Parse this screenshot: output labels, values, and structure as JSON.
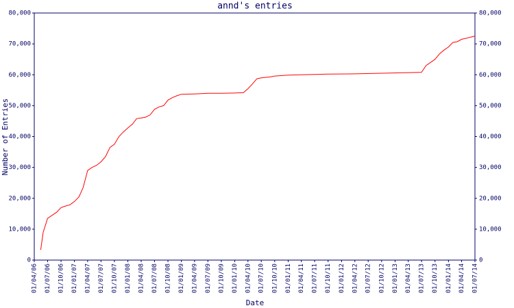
{
  "chart_data": {
    "type": "line",
    "title": "annd's entries",
    "xlabel": "Date",
    "ylabel": "Number of Entries",
    "x": [
      "2006-05-15",
      "2006-06-01",
      "2006-07-01",
      "2006-08-01",
      "2006-09-01",
      "2006-10-01",
      "2006-11-01",
      "2006-12-01",
      "2007-01-01",
      "2007-02-01",
      "2007-03-01",
      "2007-04-01",
      "2007-05-01",
      "2007-06-01",
      "2007-07-01",
      "2007-08-01",
      "2007-09-01",
      "2007-10-01",
      "2007-11-01",
      "2007-12-01",
      "2008-01-01",
      "2008-02-01",
      "2008-03-01",
      "2008-04-01",
      "2008-05-01",
      "2008-06-01",
      "2008-07-01",
      "2008-08-01",
      "2008-09-01",
      "2008-10-01",
      "2008-11-01",
      "2008-12-01",
      "2009-01-01",
      "2009-04-01",
      "2009-07-01",
      "2009-10-01",
      "2010-01-01",
      "2010-03-01",
      "2010-04-01",
      "2010-05-01",
      "2010-06-01",
      "2010-07-01",
      "2010-09-01",
      "2010-10-01",
      "2011-01-01",
      "2011-04-01",
      "2011-10-01",
      "2012-04-01",
      "2012-10-01",
      "2013-04-01",
      "2013-07-01",
      "2013-08-01",
      "2013-09-01",
      "2013-10-01",
      "2013-11-01",
      "2013-12-01",
      "2014-01-01",
      "2014-02-01",
      "2014-03-01",
      "2014-04-01",
      "2014-05-01",
      "2014-06-01",
      "2014-07-01"
    ],
    "series": [
      {
        "name": "entries",
        "color": "#ff0000",
        "values": [
          3300,
          9000,
          13500,
          14500,
          15500,
          17000,
          17500,
          17900,
          19000,
          20500,
          23500,
          29000,
          30000,
          30700,
          31800,
          33500,
          36500,
          37500,
          40000,
          41500,
          42800,
          44000,
          45800,
          46000,
          46300,
          47000,
          48800,
          49600,
          50000,
          51800,
          52600,
          53200,
          53700,
          53800,
          54000,
          54000,
          54100,
          54200,
          55500,
          57000,
          58700,
          59000,
          59300,
          59600,
          59900,
          60000,
          60200,
          60300,
          60500,
          60700,
          60800,
          63000,
          64000,
          65000,
          66800,
          68000,
          69000,
          70500,
          70700,
          71500,
          71800,
          72200,
          72500
        ]
      }
    ],
    "xlim": [
      "2006-04-01",
      "2014-07-01"
    ],
    "xticks": [
      {
        "value": "2006-04-01",
        "label": "01/04/06"
      },
      {
        "value": "2006-07-01",
        "label": "01/07/06"
      },
      {
        "value": "2006-10-01",
        "label": "01/10/06"
      },
      {
        "value": "2007-01-01",
        "label": "01/01/07"
      },
      {
        "value": "2007-04-01",
        "label": "01/04/07"
      },
      {
        "value": "2007-07-01",
        "label": "01/07/07"
      },
      {
        "value": "2007-10-01",
        "label": "01/10/07"
      },
      {
        "value": "2008-01-01",
        "label": "01/01/08"
      },
      {
        "value": "2008-04-01",
        "label": "01/04/08"
      },
      {
        "value": "2008-07-01",
        "label": "01/07/08"
      },
      {
        "value": "2008-10-01",
        "label": "01/10/08"
      },
      {
        "value": "2009-01-01",
        "label": "01/01/09"
      },
      {
        "value": "2009-04-01",
        "label": "01/04/09"
      },
      {
        "value": "2009-07-01",
        "label": "01/07/09"
      },
      {
        "value": "2009-10-01",
        "label": "01/10/09"
      },
      {
        "value": "2010-01-01",
        "label": "01/01/10"
      },
      {
        "value": "2010-04-01",
        "label": "01/04/10"
      },
      {
        "value": "2010-07-01",
        "label": "01/07/10"
      },
      {
        "value": "2010-10-01",
        "label": "01/10/10"
      },
      {
        "value": "2011-01-01",
        "label": "01/01/11"
      },
      {
        "value": "2011-04-01",
        "label": "01/04/11"
      },
      {
        "value": "2011-07-01",
        "label": "01/07/11"
      },
      {
        "value": "2011-10-01",
        "label": "01/10/11"
      },
      {
        "value": "2012-01-01",
        "label": "01/01/12"
      },
      {
        "value": "2012-04-01",
        "label": "01/04/12"
      },
      {
        "value": "2012-07-01",
        "label": "01/07/12"
      },
      {
        "value": "2012-10-01",
        "label": "01/10/12"
      },
      {
        "value": "2013-01-01",
        "label": "01/01/13"
      },
      {
        "value": "2013-04-01",
        "label": "01/04/13"
      },
      {
        "value": "2013-07-01",
        "label": "01/07/13"
      },
      {
        "value": "2013-10-01",
        "label": "01/10/13"
      },
      {
        "value": "2014-01-01",
        "label": "01/01/14"
      },
      {
        "value": "2014-04-01",
        "label": "01/04/14"
      },
      {
        "value": "2014-07-01",
        "label": "01/07/14"
      }
    ],
    "ylim": [
      0,
      80000
    ],
    "yticks": [
      0,
      {
        "value": 10000,
        "label": "10,000"
      },
      {
        "value": 20000,
        "label": "20,000"
      },
      {
        "value": 30000,
        "label": "30,000"
      },
      {
        "value": 40000,
        "label": "40,000"
      },
      {
        "value": 50000,
        "label": "50,000"
      },
      {
        "value": 60000,
        "label": "60,000"
      },
      {
        "value": 70000,
        "label": "70,000"
      },
      {
        "value": 80000,
        "label": "80,000"
      }
    ],
    "right_axis": true
  }
}
